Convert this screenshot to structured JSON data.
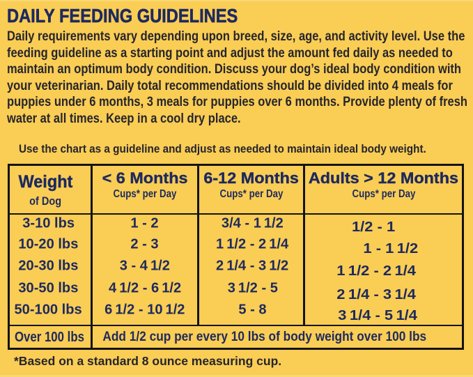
{
  "colors": {
    "background": "#FACD55",
    "heading_navy": "#1E2A5E",
    "body_black": "#26252B",
    "table_border": "#141414"
  },
  "title": "DAILY FEEDING GUIDELINES",
  "intro": {
    "lines": [
      "Daily requirements vary depending upon breed, size, age, and activity level. Use the",
      "feeding guideline as a starting point and adjust the amount fed daily as needed to",
      "maintain an optimum body condition. Discuss your dog’s ideal body condition with",
      "your veterinarian. Daily total recommendations should be divided into 4 meals for",
      "puppies under 6 months, 3 meals for puppies over 6 months. Provide plenty of fresh",
      "water at all times. Keep in a cool dry place."
    ]
  },
  "usage_note": "Use the chart as a guideline and adjust as needed to maintain ideal body weight.",
  "table": {
    "columns": [
      {
        "title": "Weight",
        "subtitle": "of Dog"
      },
      {
        "title": "< 6 Months",
        "subtitle": "Cups* per Day"
      },
      {
        "title": "6-12 Months",
        "subtitle": "Cups* per Day"
      },
      {
        "title": "Adults > 12 Months",
        "subtitle": "Cups* per Day"
      }
    ],
    "rows": [
      {
        "weight": "3-10 lbs",
        "under_6_months": "1 - 2",
        "months_6_12": "3/4 - 1 1/2",
        "adults": "1/2 - 1"
      },
      {
        "weight": "10-20 lbs",
        "under_6_months": "2 - 3",
        "months_6_12": "1 1/2 - 2 1/4",
        "adults": "1 - 1 1/2"
      },
      {
        "weight": "20-30 lbs",
        "under_6_months": "3 - 4 1/2",
        "months_6_12": "2 1/4 - 3 1/2",
        "adults": "1 1/2 - 2 1/4"
      },
      {
        "weight": "30-50 lbs",
        "under_6_months": "4 1/2 - 6 1/2",
        "months_6_12": "3 1/2 - 5",
        "adults": "2 1/4 - 3 1/4"
      },
      {
        "weight": "50-100 lbs",
        "under_6_months": "6 1/2 - 10 1/2",
        "months_6_12": "5 - 8",
        "adults": "3 1/4 - 5 1/4"
      }
    ],
    "over_100_row": {
      "weight": "Over 100 lbs",
      "note": "Add 1/2 cup per every 10 lbs of body weight over 100 lbs"
    }
  },
  "footnote": "*Based on a standard 8 ounce measuring cup."
}
